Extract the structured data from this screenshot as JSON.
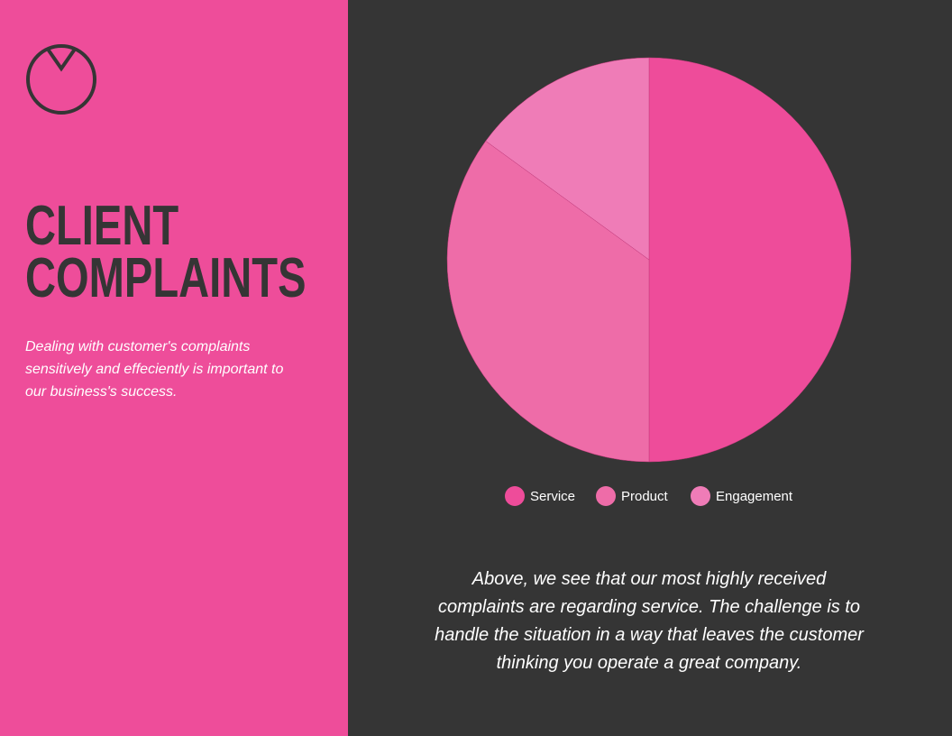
{
  "chart_data": {
    "type": "pie",
    "title": "CLIENT COMPLAINTS",
    "subtitle": "Dealing with customer's complaints sensitively and effeciently is important to our business's success.",
    "categories": [
      "Service",
      "Product",
      "Engagement"
    ],
    "values": [
      50,
      35,
      15
    ],
    "colors": [
      "#ee4c9a",
      "#ee6ca8",
      "#ef7cb7"
    ],
    "caption": "Above, we see that our most highly received complaints are regarding service. The challenge is to handle the situation in a way that leaves the customer thinking you operate a great company."
  }
}
